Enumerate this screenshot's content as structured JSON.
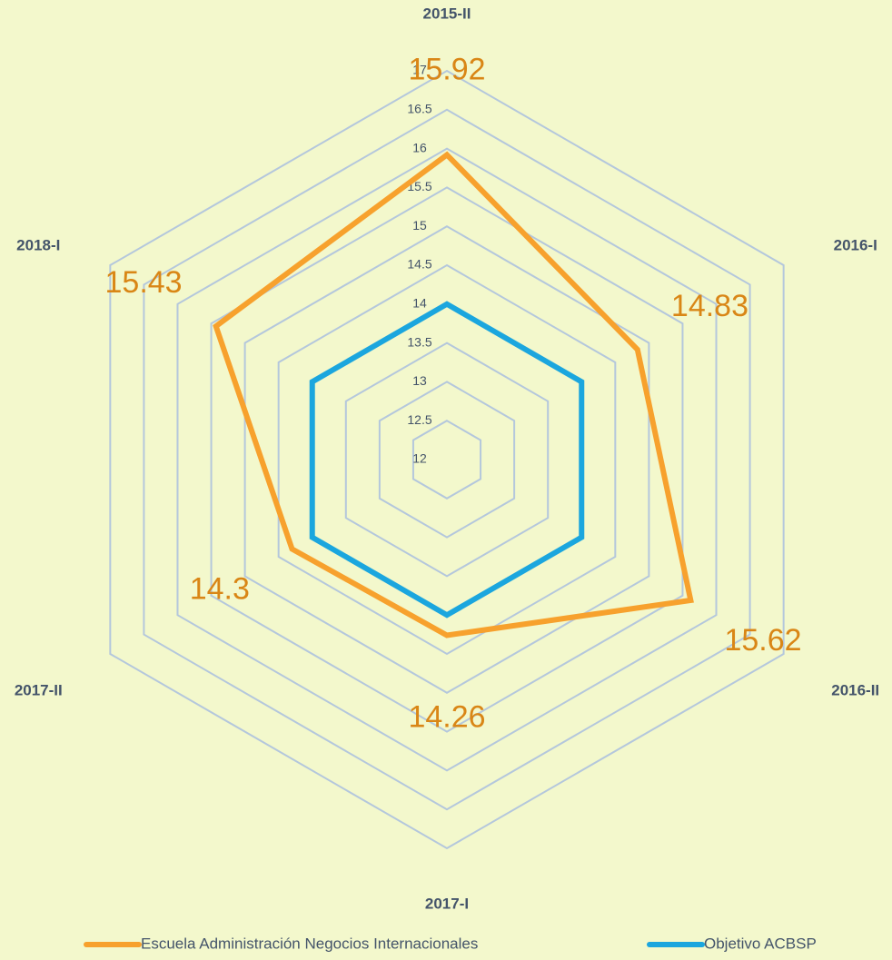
{
  "chart_data": {
    "type": "radar",
    "categories": [
      "2015-II",
      "2016-I",
      "2016-II",
      "2017-I",
      "2017-II",
      "2018-I"
    ],
    "series": [
      {
        "name": "Escuela Administración Negocios Internacionales",
        "color": "#f7a12d",
        "values": [
          15.92,
          14.83,
          15.62,
          14.26,
          14.3,
          15.43
        ]
      },
      {
        "name": "Objetivo ACBSP",
        "color": "#1ba6de",
        "values": [
          14,
          14,
          14,
          14,
          14,
          14
        ]
      }
    ],
    "rlim": [
      12,
      17
    ],
    "rticks": [
      12,
      12.5,
      13,
      13.5,
      14,
      14.5,
      15,
      15.5,
      16,
      16.5,
      17
    ],
    "grid": true,
    "data_labels_series": 0,
    "legend": "bottom"
  }
}
